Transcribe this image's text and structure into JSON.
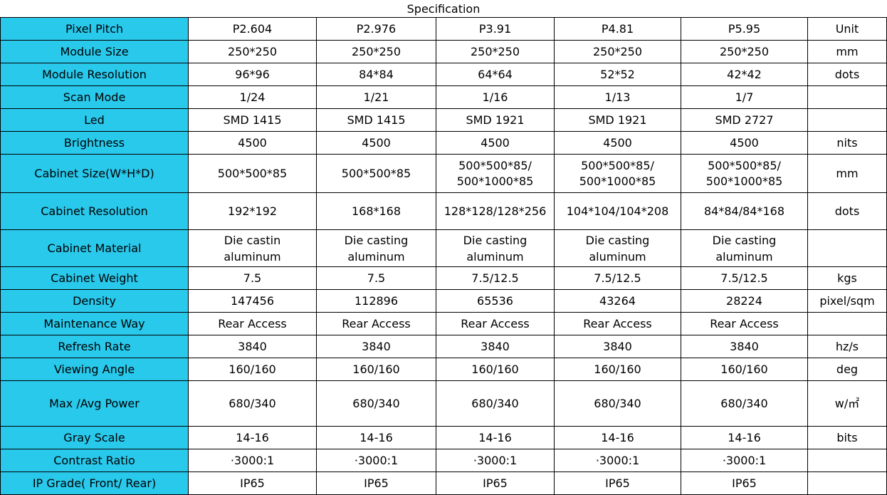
{
  "title": "Specification",
  "columns": [
    "Pixel Pitch",
    "P2.604",
    "P2.976",
    "P3.91",
    "P4.81",
    "P5.95",
    "Unit"
  ],
  "rows": [
    {
      "label": "Module Size",
      "values": [
        "250*250",
        "250*250",
        "250*250",
        "250*250",
        "250*250"
      ],
      "unit": "mm"
    },
    {
      "label": "Module Resolution",
      "values": [
        "96*96",
        "84*84",
        "64*64",
        "52*52",
        "42*42"
      ],
      "unit": "dots"
    },
    {
      "label": "Scan Mode",
      "values": [
        "1/24",
        "1/21",
        "1/16",
        "1/13",
        "1/7"
      ],
      "unit": ""
    },
    {
      "label": "Led",
      "values": [
        "SMD 1415",
        "SMD 1415",
        "SMD 1921",
        "SMD 1921",
        "SMD 2727"
      ],
      "unit": ""
    },
    {
      "label": "Brightness",
      "values": [
        "4500",
        "4500",
        "4500",
        "4500",
        "4500"
      ],
      "unit": "nits"
    },
    {
      "label": "Cabinet Size(W*H*D)",
      "values": [
        "500*500*85",
        "500*500*85",
        "500*500*85/ 500*1000*85",
        "500*500*85/ 500*1000*85",
        "500*500*85/ 500*1000*85"
      ],
      "unit": "mm"
    },
    {
      "label": "Cabinet Resolution",
      "values": [
        "192*192",
        "168*168",
        "128*128/128*256",
        "104*104/104*208",
        "84*84/84*168"
      ],
      "unit": "dots"
    },
    {
      "label": "Cabinet Material",
      "values": [
        "Die castin aluminum",
        "Die casting aluminum",
        "Die casting aluminum",
        "Die casting aluminum",
        "Die casting aluminum"
      ],
      "unit": ""
    },
    {
      "label": "Cabinet Weight",
      "values": [
        "7.5",
        "7.5",
        "7.5/12.5",
        "7.5/12.5",
        "7.5/12.5"
      ],
      "unit": "kgs"
    },
    {
      "label": "Density",
      "values": [
        "147456",
        "112896",
        "65536",
        "43264",
        "28224"
      ],
      "unit": "pixel/sqm"
    },
    {
      "label": "Maintenance Way",
      "values": [
        "Rear Access",
        "Rear Access",
        "Rear Access",
        "Rear Access",
        "Rear Access"
      ],
      "unit": ""
    },
    {
      "label": "Refresh Rate",
      "values": [
        "3840",
        "3840",
        "3840",
        "3840",
        "3840"
      ],
      "unit": "hz/s"
    },
    {
      "label": "Viewing Angle",
      "values": [
        "160/160",
        "160/160",
        "160/160",
        "160/160",
        "160/160"
      ],
      "unit": "deg"
    },
    {
      "label": "Max /Avg Power",
      "values": [
        "680/340",
        "680/340",
        "680/340",
        "680/340",
        "680/340"
      ],
      "unit": "w/㎡"
    },
    {
      "label": "Gray Scale",
      "values": [
        "14-16",
        "14-16",
        "14-16",
        "14-16",
        "14-16"
      ],
      "unit": "bits"
    },
    {
      "label": "Contrast Ratio",
      "values": [
        "·3000:1",
        "·3000:1",
        "·3000:1",
        "·3000:1",
        "·3000:1"
      ],
      "unit": ""
    },
    {
      "label": "IP Grade( Front/ Rear)",
      "values": [
        "IP65",
        "IP65",
        "IP65",
        "IP65",
        "IP65"
      ],
      "unit": ""
    }
  ],
  "colors": {
    "label_background": "#29c9ec",
    "grid": "#000000"
  }
}
